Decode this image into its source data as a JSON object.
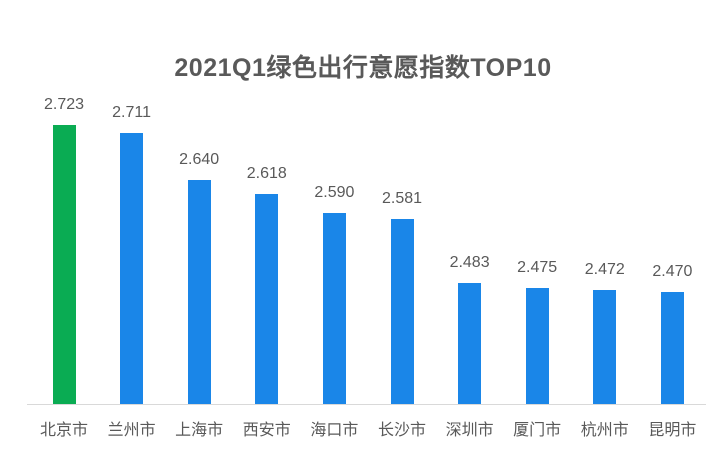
{
  "chart_data": {
    "type": "bar",
    "title": "2021Q1绿色出行意愿指数TOP10",
    "categories": [
      "北京市",
      "兰州市",
      "上海市",
      "西安市",
      "海口市",
      "长沙市",
      "深圳市",
      "厦门市",
      "杭州市",
      "昆明市"
    ],
    "values": [
      2.723,
      2.711,
      2.64,
      2.618,
      2.59,
      2.581,
      2.483,
      2.475,
      2.472,
      2.47
    ],
    "value_labels": [
      "2.723",
      "2.711",
      "2.640",
      "2.618",
      "2.590",
      "2.581",
      "2.483",
      "2.475",
      "2.472",
      "2.470"
    ],
    "bar_colors": [
      "#0aac53",
      "#1a86e8",
      "#1a86e8",
      "#1a86e8",
      "#1a86e8",
      "#1a86e8",
      "#1a86e8",
      "#1a86e8",
      "#1a86e8",
      "#1a86e8"
    ],
    "xlabel": "",
    "ylabel": "",
    "ylim": [
      2.3,
      2.75
    ],
    "grid": "off",
    "legend": "none",
    "colors": {
      "highlight_bar": "#0aac53",
      "default_bar": "#1a86e8",
      "axis_line": "#d9d9d9",
      "text": "#595959",
      "background": "#ffffff"
    }
  }
}
